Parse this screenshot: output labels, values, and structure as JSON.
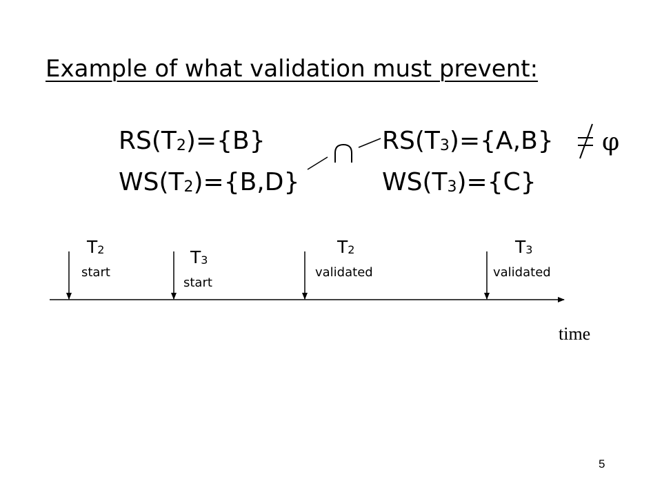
{
  "slide": {
    "title": "Example of what validation must prevent:",
    "sets": {
      "t2_read": {
        "prefix": "RS(T",
        "sub": "2",
        "suffix": ")={B}"
      },
      "t2_write": {
        "prefix": "WS(T",
        "sub": "2",
        "suffix": ")={B,D}"
      },
      "t3_read": {
        "prefix": "RS(T",
        "sub": "3",
        "suffix": ")={A,B}"
      },
      "t3_write": {
        "prefix": "WS(T",
        "sub": "3",
        "suffix": ")={C}"
      }
    },
    "intersection_symbol": "∩",
    "empty_set_symbol": "φ",
    "not_equal_symbol": "=",
    "timeline": {
      "events": [
        {
          "name": "T",
          "sub": "2",
          "event": "start"
        },
        {
          "name": "T",
          "sub": "3",
          "event": "start"
        },
        {
          "name": "T",
          "sub": "2",
          "event": "validated"
        },
        {
          "name": "T",
          "sub": "3",
          "event": "validated"
        }
      ],
      "axis_label": "time"
    },
    "page_number": "5"
  }
}
